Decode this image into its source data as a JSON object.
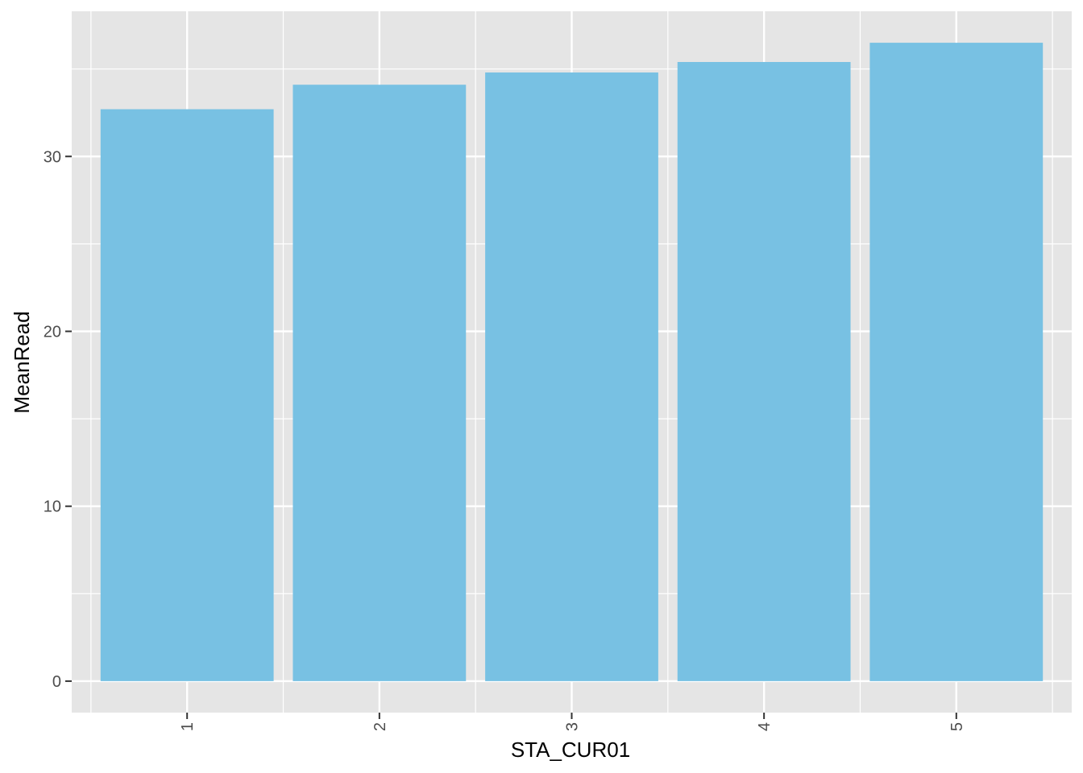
{
  "chart_data": {
    "type": "bar",
    "categories": [
      "1",
      "2",
      "3",
      "4",
      "5"
    ],
    "values": [
      32.7,
      34.1,
      34.8,
      35.4,
      36.5
    ],
    "title": "",
    "xlabel": "STA_CUR01",
    "ylabel": "MeanRead",
    "ylim": [
      -1.8,
      38.3
    ],
    "y_ticks": [
      "0",
      "10",
      "20",
      "30"
    ],
    "x_tick_rotation": "vertical",
    "grid": true,
    "legend": "none",
    "colors": {
      "bar": "#78C1E3",
      "panel_background": "#E5E5E5",
      "grid": "#FFFFFF",
      "tick_text": "#4D4D4D",
      "tick_mark": "#333333",
      "axis_title": "#000000"
    }
  }
}
